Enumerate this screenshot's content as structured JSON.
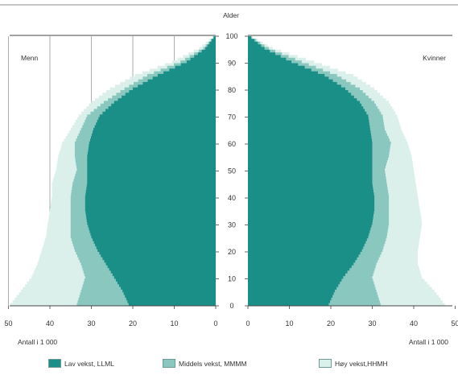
{
  "chart_data": {
    "type": "area",
    "subtype": "population-pyramid",
    "title": "Alder",
    "left_panel_label": "Menn",
    "right_panel_label": "Kvinner",
    "xlabel_left": "Antall i 1 000",
    "xlabel_right": "Antall i 1 000",
    "x_ticks_left": [
      "50",
      "40",
      "30",
      "20",
      "10",
      "0"
    ],
    "x_ticks_right": [
      "0",
      "10",
      "20",
      "30",
      "40",
      "50"
    ],
    "y_ticks": [
      "0",
      "10",
      "20",
      "30",
      "40",
      "50",
      "60",
      "70",
      "80",
      "90",
      "100"
    ],
    "xlim": [
      0,
      50
    ],
    "ylim": [
      0,
      100
    ],
    "ages": [
      0,
      5,
      10,
      15,
      20,
      25,
      30,
      35,
      40,
      45,
      50,
      55,
      60,
      65,
      70,
      75,
      80,
      85,
      90,
      95,
      100
    ],
    "series": [
      {
        "name": "Lav vekst, LLML",
        "color": "#1a8f88",
        "men": [
          21,
          22.5,
          24.5,
          26.5,
          28.5,
          30,
          31,
          31.5,
          31.5,
          31,
          31,
          31,
          30.5,
          29.5,
          28,
          24.5,
          20,
          14,
          7,
          2.5,
          0
        ],
        "women": [
          19.5,
          21,
          23,
          25.5,
          27.5,
          29,
          30,
          30.5,
          30.5,
          30,
          30,
          30,
          30,
          29.5,
          29,
          27,
          23.5,
          18.5,
          10.5,
          4,
          0
        ]
      },
      {
        "name": "Middels vekst, MMMM",
        "color": "#8ac7bf",
        "men": [
          33.5,
          32.5,
          31.5,
          32.5,
          34,
          35,
          35,
          35,
          35,
          34.5,
          33.5,
          34,
          34,
          32.5,
          31,
          27,
          22,
          16.5,
          8.5,
          3,
          0
        ],
        "women": [
          32,
          31,
          30,
          31,
          32.5,
          33.5,
          34,
          34,
          34,
          33.5,
          33,
          34,
          34.5,
          33,
          32.5,
          30.5,
          27,
          21.5,
          13,
          5,
          0
        ]
      },
      {
        "name": "Høy vekst,HHMH",
        "color": "#dbf0eb",
        "men": [
          49.5,
          47,
          44.5,
          43,
          42,
          41,
          40.5,
          40,
          39.5,
          39.5,
          38.5,
          38,
          37,
          35,
          33,
          30,
          25.5,
          19.5,
          10.5,
          4,
          0
        ],
        "women": [
          47.5,
          45,
          42,
          41,
          41,
          41.5,
          42,
          41.5,
          41,
          40.5,
          40,
          39.5,
          38.5,
          37,
          36,
          34,
          30.5,
          25.5,
          16,
          6,
          0
        ]
      }
    ],
    "grid": "vertical-left",
    "legend": "bottom"
  }
}
